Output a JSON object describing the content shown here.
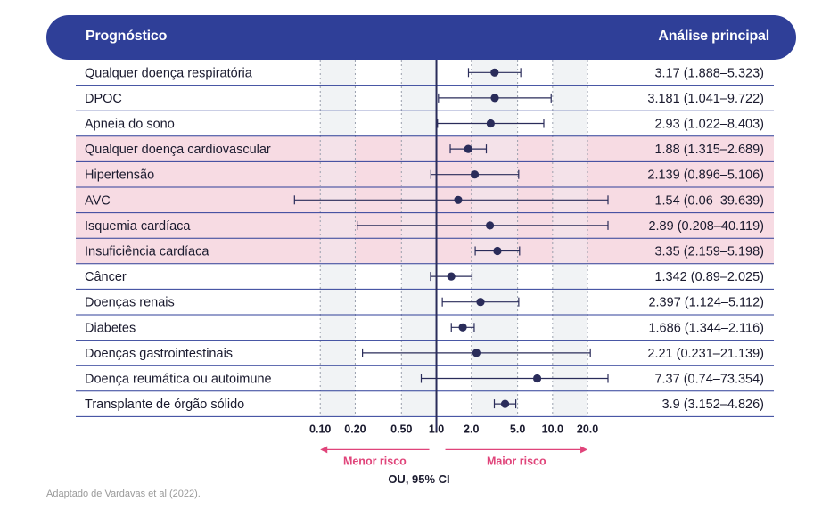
{
  "header": {
    "left_title": "Prognóstico",
    "right_title": "Análise principal"
  },
  "chart_data": {
    "type": "forest",
    "x_scale": "log",
    "xlim": [
      0.05,
      30
    ],
    "x_ticks": [
      0.1,
      0.2,
      0.5,
      1.0,
      2.0,
      5.0,
      10.0,
      20.0
    ],
    "x_tick_labels": [
      "0.10",
      "0.20",
      "0.50",
      "1.0",
      "2.0",
      "5.0",
      "10.0",
      "20.0"
    ],
    "reference_line": 1.0,
    "xlabel": "OU, 95% CI",
    "left_arrow_label": "Menor risco",
    "right_arrow_label": "Maior risco",
    "rows": [
      {
        "label": "Qualquer doença respiratória",
        "or": 3.17,
        "lo": 1.888,
        "hi": 5.323,
        "text": "3.17 (1.888–5.323)",
        "highlight": false
      },
      {
        "label": "DPOC",
        "or": 3.181,
        "lo": 1.041,
        "hi": 9.722,
        "text": "3.181 (1.041–9.722)",
        "highlight": false
      },
      {
        "label": "Apneia do sono",
        "or": 2.93,
        "lo": 1.022,
        "hi": 8.403,
        "text": "2.93 (1.022–8.403)",
        "highlight": false
      },
      {
        "label": "Qualquer doença cardiovascular",
        "or": 1.88,
        "lo": 1.315,
        "hi": 2.689,
        "text": "1.88 (1.315–2.689)",
        "highlight": true
      },
      {
        "label": "Hipertensão",
        "or": 2.139,
        "lo": 0.896,
        "hi": 5.106,
        "text": "2.139 (0.896–5.106)",
        "highlight": true
      },
      {
        "label": "AVC",
        "or": 1.54,
        "lo": 0.06,
        "hi": 39.639,
        "text": "1.54 (0.06–39.639)",
        "highlight": true
      },
      {
        "label": "Isquemia cardíaca",
        "or": 2.89,
        "lo": 0.208,
        "hi": 40.119,
        "text": "2.89 (0.208–40.119)",
        "highlight": true
      },
      {
        "label": "Insuficiência cardíaca",
        "or": 3.35,
        "lo": 2.159,
        "hi": 5.198,
        "text": "3.35 (2.159–5.198)",
        "highlight": true
      },
      {
        "label": "Câncer",
        "or": 1.342,
        "lo": 0.89,
        "hi": 2.025,
        "text": "1.342 (0.89–2.025)",
        "highlight": false
      },
      {
        "label": "Doenças renais",
        "or": 2.397,
        "lo": 1.124,
        "hi": 5.112,
        "text": "2.397 (1.124–5.112)",
        "highlight": false
      },
      {
        "label": "Diabetes",
        "or": 1.686,
        "lo": 1.344,
        "hi": 2.116,
        "text": "1.686 (1.344–2.116)",
        "highlight": false
      },
      {
        "label": "Doenças gastrointestinais",
        "or": 2.21,
        "lo": 0.231,
        "hi": 21.139,
        "text": "2.21 (0.231–21.139)",
        "highlight": false
      },
      {
        "label": "Doença reumática ou autoimune",
        "or": 7.37,
        "lo": 0.74,
        "hi": 73.354,
        "text": "7.37 (0.74–73.354)",
        "highlight": false
      },
      {
        "label": "Transplante de órgão sólido",
        "or": 3.9,
        "lo": 3.152,
        "hi": 4.826,
        "text": "3.9 (3.152–4.826)",
        "highlight": false
      }
    ]
  },
  "colors": {
    "header_bg": "#2f3f98",
    "row_highlight": "#f7dbe3",
    "shade_band": "#eef0f3",
    "marker": "#2a2c5a",
    "arrow": "#e0447a",
    "divider": "#2f3f98"
  },
  "footnote": "Adaptado de Vardavas et al (2022)."
}
